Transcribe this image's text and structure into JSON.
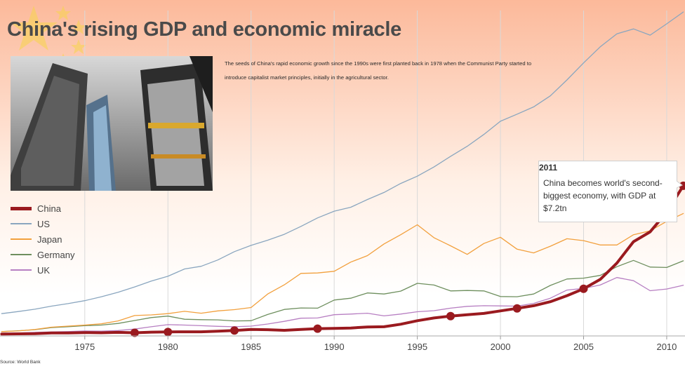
{
  "title": "China's rising GDP and economic miracle",
  "intro": "The seeds of China's rapid economic growth since the 1990s were first planted back in 1978 when the Communist Party started to introduce capitalist market principles, initially in the agricultural sector.",
  "source": "Source: World Bank",
  "callout": {
    "year": "2011",
    "text": "China becomes world's second-biggest economy, with GDP at $7.2tn"
  },
  "colors": {
    "China": "#9a1a1f",
    "US": "#8aa6bf",
    "Japan": "#f2a03d",
    "Germany": "#6e8f5e",
    "UK": "#b77fc2",
    "flag_star": "#f6d64a",
    "flag_red": "#f3866d"
  },
  "icons": {
    "flag": "china-flag-stars-icon",
    "photo": "shanghai-skyscrapers-photo"
  },
  "chart_data": {
    "type": "line",
    "title": "China's rising GDP and economic miracle",
    "xlabel": "",
    "ylabel": "",
    "x": [
      1970,
      1971,
      1972,
      1973,
      1974,
      1975,
      1976,
      1977,
      1978,
      1979,
      1980,
      1981,
      1982,
      1983,
      1984,
      1985,
      1986,
      1987,
      1988,
      1989,
      1990,
      1991,
      1992,
      1993,
      1994,
      1995,
      1996,
      1997,
      1998,
      1999,
      2000,
      2001,
      2002,
      2003,
      2004,
      2005,
      2006,
      2007,
      2008,
      2009,
      2010,
      2011
    ],
    "xticks": [
      1975,
      1980,
      1985,
      1990,
      1995,
      2000,
      2005,
      2010
    ],
    "xlim": [
      1969.9,
      2011.1
    ],
    "ylim": [
      0,
      15.6
    ],
    "grid": "vertical",
    "legend": "left",
    "series": [
      {
        "name": "China",
        "values": [
          0.09,
          0.1,
          0.11,
          0.14,
          0.14,
          0.16,
          0.15,
          0.17,
          0.15,
          0.18,
          0.19,
          0.2,
          0.2,
          0.23,
          0.26,
          0.31,
          0.3,
          0.27,
          0.31,
          0.35,
          0.36,
          0.38,
          0.43,
          0.44,
          0.56,
          0.73,
          0.86,
          0.95,
          1.02,
          1.08,
          1.2,
          1.32,
          1.45,
          1.64,
          1.93,
          2.26,
          2.71,
          3.49,
          4.52,
          4.99,
          5.93,
          7.2
        ]
      },
      {
        "name": "US",
        "values": [
          1.07,
          1.17,
          1.28,
          1.43,
          1.55,
          1.69,
          1.88,
          2.09,
          2.35,
          2.63,
          2.86,
          3.21,
          3.34,
          3.64,
          4.04,
          4.34,
          4.59,
          4.87,
          5.25,
          5.66,
          5.98,
          6.17,
          6.54,
          6.88,
          7.31,
          7.66,
          8.1,
          8.61,
          9.09,
          9.66,
          10.29,
          10.63,
          10.98,
          11.51,
          12.27,
          13.09,
          13.86,
          14.48,
          14.72,
          14.42,
          14.96,
          15.53
        ]
      },
      {
        "name": "Japan",
        "values": [
          0.21,
          0.24,
          0.31,
          0.42,
          0.47,
          0.52,
          0.58,
          0.72,
          0.98,
          1.01,
          1.07,
          1.18,
          1.09,
          1.2,
          1.26,
          1.36,
          2.01,
          2.45,
          3.0,
          3.02,
          3.1,
          3.54,
          3.85,
          4.41,
          4.85,
          5.33,
          4.71,
          4.32,
          3.91,
          4.43,
          4.73,
          4.16,
          3.98,
          4.3,
          4.66,
          4.57,
          4.36,
          4.36,
          4.85,
          5.04,
          5.49,
          5.87
        ]
      },
      {
        "name": "Germany",
        "values": [
          0.21,
          0.25,
          0.3,
          0.4,
          0.44,
          0.49,
          0.52,
          0.6,
          0.74,
          0.88,
          0.95,
          0.8,
          0.78,
          0.77,
          0.72,
          0.73,
          1.03,
          1.27,
          1.34,
          1.33,
          1.72,
          1.81,
          2.06,
          2.01,
          2.15,
          2.52,
          2.44,
          2.16,
          2.18,
          2.16,
          1.89,
          1.88,
          2.01,
          2.42,
          2.73,
          2.77,
          2.9,
          3.32,
          3.62,
          3.3,
          3.28,
          3.6
        ]
      },
      {
        "name": "UK",
        "values": [
          0.12,
          0.14,
          0.17,
          0.19,
          0.21,
          0.24,
          0.23,
          0.26,
          0.33,
          0.44,
          0.54,
          0.52,
          0.49,
          0.46,
          0.44,
          0.47,
          0.57,
          0.7,
          0.85,
          0.86,
          1.02,
          1.05,
          1.09,
          0.96,
          1.05,
          1.16,
          1.21,
          1.33,
          1.42,
          1.45,
          1.44,
          1.43,
          1.56,
          1.81,
          2.2,
          2.28,
          2.44,
          2.8,
          2.65,
          2.17,
          2.25,
          2.43
        ]
      }
    ],
    "markers": {
      "series": "China",
      "years": [
        1978,
        1980,
        1984,
        1989,
        1997,
        2001,
        2005,
        2011
      ]
    },
    "annotations": [
      {
        "year": 2011,
        "series": "China",
        "text": "China becomes world's second-biggest economy, with GDP at $7.2tn"
      }
    ]
  }
}
